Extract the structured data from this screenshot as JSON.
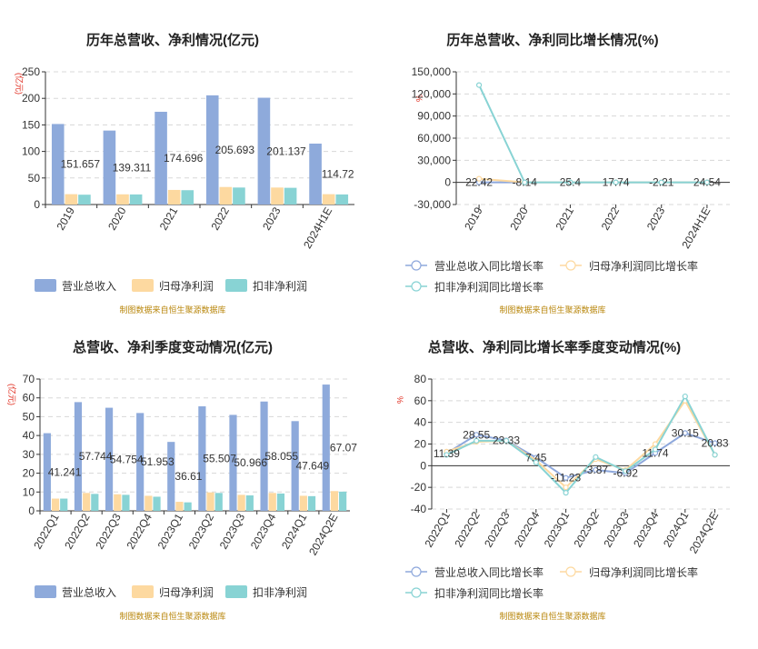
{
  "charts": [
    {
      "title": "历年总营收、净利情况(亿元)",
      "unit": "(亿元)",
      "source": "制图数据来自恒生聚源数据库",
      "chart_data": {
        "type": "bar",
        "categories": [
          "2019",
          "2020",
          "2021",
          "2022",
          "2023",
          "2024H1E"
        ],
        "ylim": [
          0,
          250
        ],
        "yticks": [
          0,
          50,
          100,
          150,
          200,
          250
        ],
        "series": [
          {
            "name": "营业总收入",
            "values": [
              151.657,
              139.311,
              174.696,
              205.693,
              201.137,
              114.72
            ],
            "color": "#8eaadb",
            "labels": [
              "151.657",
              "139.311",
              "174.696",
              "205.693",
              "201.137",
              "114.72"
            ]
          },
          {
            "name": "归母净利润",
            "values": [
              19.5,
              19.2,
              27.5,
              33.0,
              32.0,
              19.5
            ],
            "color": "#fdd9a0"
          },
          {
            "name": "扣非净利润",
            "values": [
              18.5,
              19.0,
              27.0,
              32.0,
              31.5,
              19.0
            ],
            "color": "#88d3d4"
          }
        ],
        "legend_position": "bottom"
      }
    },
    {
      "title": "历年总营收、净利同比增长情况(%)",
      "unit": "%",
      "source": "制图数据来自恒生聚源数据库",
      "chart_data": {
        "type": "line",
        "categories": [
          "2019",
          "2020",
          "2021",
          "2022",
          "2023",
          "2024H1E"
        ],
        "ylim": [
          -30000,
          150000
        ],
        "yticks": [
          -30000,
          0,
          30000,
          60000,
          90000,
          120000,
          150000
        ],
        "ytick_labels": [
          "-30,000",
          "0",
          "30,000",
          "60,000",
          "90,000",
          "120,000",
          "150,000"
        ],
        "series": [
          {
            "name": "营业总收入同比增长率",
            "values": [
              22.42,
              -8.14,
              25.4,
              17.74,
              -2.21,
              24.54
            ],
            "color": "#8ea8dc",
            "labels": [
              "22.42",
              "-8.14",
              "25.4",
              "17.74",
              "-2.21",
              "24.54"
            ]
          },
          {
            "name": "归母净利润同比增长率",
            "values": [
              5000,
              0,
              40,
              20,
              -3,
              20
            ],
            "color": "#fdd9a0"
          },
          {
            "name": "扣非净利润同比增长率",
            "values": [
              132000,
              0,
              40,
              20,
              -3,
              20
            ],
            "color": "#88d3d4"
          }
        ],
        "legend_position": "bottom"
      }
    },
    {
      "title": "总营收、净利季度变动情况(亿元)",
      "unit": "(亿元)",
      "source": "制图数据来自恒生聚源数据库",
      "chart_data": {
        "type": "bar",
        "categories": [
          "2022Q1",
          "2022Q2",
          "2022Q3",
          "2022Q4",
          "2023Q1",
          "2023Q2",
          "2023Q3",
          "2023Q4",
          "2024Q1",
          "2024Q2E"
        ],
        "ylim": [
          0,
          70
        ],
        "yticks": [
          0,
          10,
          20,
          30,
          40,
          50,
          60,
          70
        ],
        "series": [
          {
            "name": "营业总收入",
            "values": [
              41.241,
              57.744,
              54.754,
              51.953,
              36.61,
              55.507,
              50.966,
              58.055,
              47.649,
              67.07
            ],
            "color": "#8eaadb",
            "labels": [
              "41.241",
              "57.744",
              "54.754",
              "51.953",
              "36.61",
              "55.507",
              "50.966",
              "58.055",
              "47.649",
              "67.07"
            ]
          },
          {
            "name": "归母净利润",
            "values": [
              6.5,
              9.5,
              8.8,
              8.0,
              4.8,
              9.8,
              8.5,
              9.5,
              8.0,
              10.5
            ],
            "color": "#fdd9a0"
          },
          {
            "name": "扣非净利润",
            "values": [
              6.5,
              9.0,
              8.5,
              7.5,
              4.5,
              9.5,
              8.2,
              9.2,
              7.8,
              10.2
            ],
            "color": "#88d3d4"
          }
        ],
        "legend_position": "bottom"
      }
    },
    {
      "title": "总营收、净利同比增长率季度变动情况(%)",
      "unit": "%",
      "source": "制图数据来自恒生聚源数据库",
      "chart_data": {
        "type": "line",
        "categories": [
          "2022Q1",
          "2022Q2",
          "2022Q3",
          "2022Q4",
          "2023Q1",
          "2023Q2",
          "2023Q3",
          "2023Q4",
          "2024Q1",
          "2024Q2E"
        ],
        "ylim": [
          -40,
          80
        ],
        "yticks": [
          -40,
          -20,
          0,
          20,
          40,
          60,
          80
        ],
        "series": [
          {
            "name": "营业总收入同比增长率",
            "values": [
              11.39,
              28.55,
              23.33,
              7.45,
              -11.23,
              -3.87,
              -6.92,
              11.74,
              30.15,
              20.83
            ],
            "color": "#8ea8dc",
            "labels": [
              "11.39",
              "28.55",
              "23.33",
              "7.45",
              "-11.23",
              "-3.87",
              "-6.92",
              "11.74",
              "30.15",
              "20.83"
            ]
          },
          {
            "name": "归母净利润同比增长率",
            "values": [
              13,
              22,
              23,
              5,
              -20,
              6,
              -4,
              20,
              60,
              10
            ],
            "color": "#fdd9a0"
          },
          {
            "name": "扣非净利润同比增长率",
            "values": [
              10,
              23,
              23,
              3,
              -25,
              8,
              -5,
              15,
              64,
              10
            ],
            "color": "#88d3d4"
          }
        ],
        "legend_position": "bottom"
      }
    }
  ]
}
